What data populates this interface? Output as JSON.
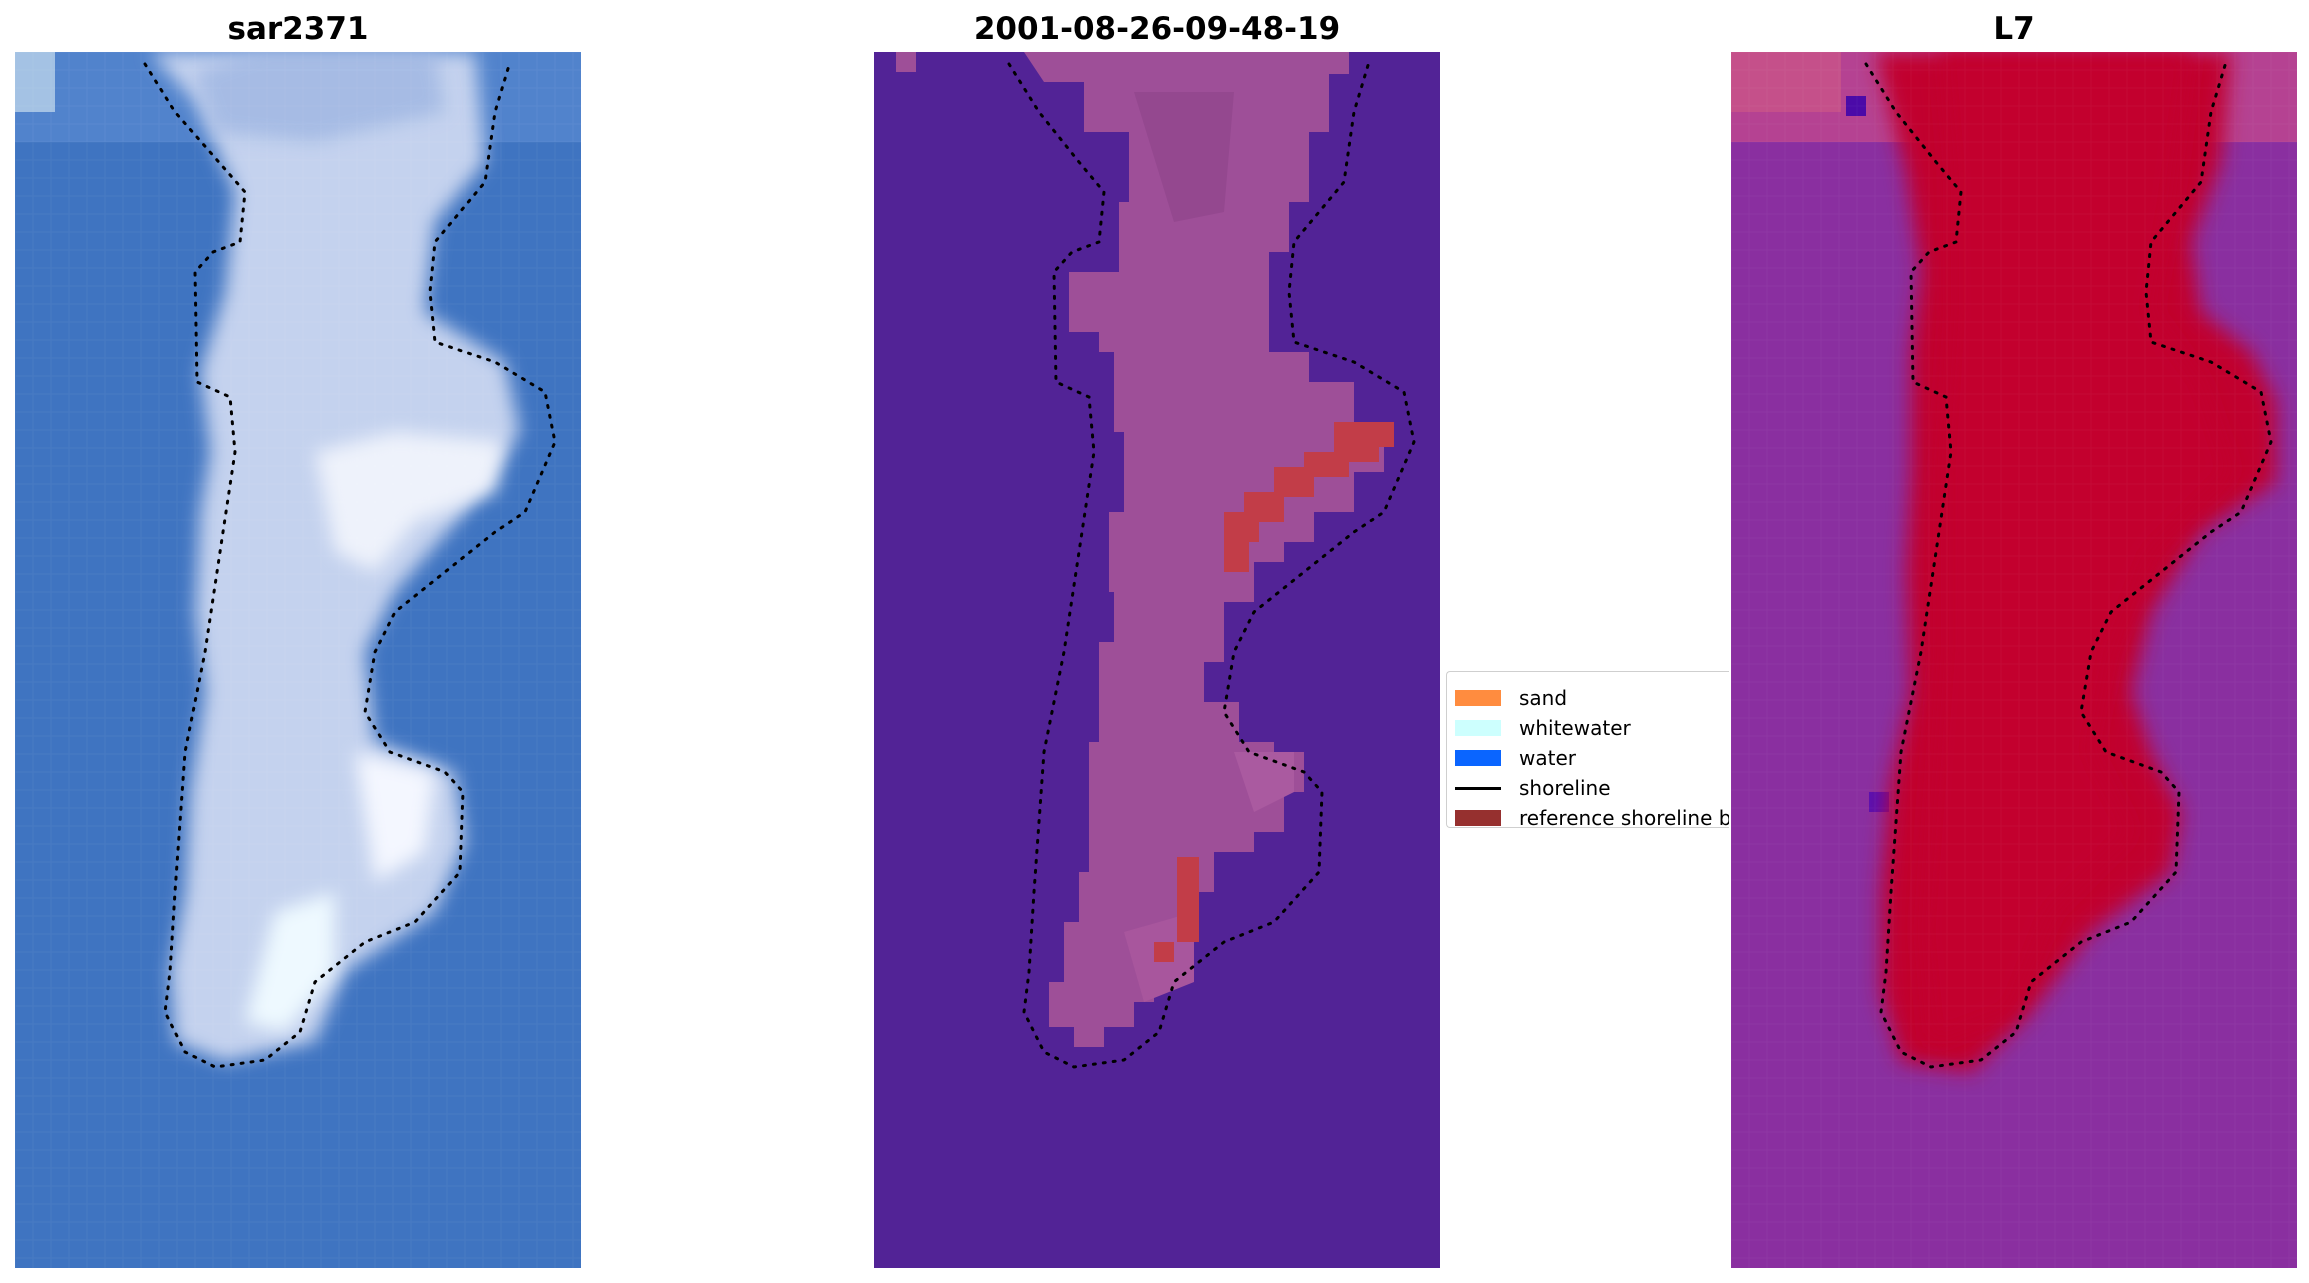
{
  "panels": [
    {
      "title": "sar2371"
    },
    {
      "title": "2001-08-26-09-48-19"
    },
    {
      "title": "L7"
    }
  ],
  "legend": {
    "items": [
      {
        "label": "sand",
        "color": "#ff8c3f",
        "kind": "patch"
      },
      {
        "label": "whitewater",
        "color": "#cdfffe",
        "kind": "patch"
      },
      {
        "label": "water",
        "color": "#0a65ff",
        "kind": "patch"
      },
      {
        "label": "shoreline",
        "color": "#000000",
        "kind": "line"
      },
      {
        "label": "reference shoreline buffer",
        "color": "#96302f",
        "kind": "patch"
      }
    ]
  },
  "colors": {
    "rgb_water": "#3f74c1",
    "rgb_land": "#c8d4ee",
    "classified_background": "#522396",
    "classified_land": "#9e4f98",
    "classified_buffer": "#c23d48",
    "index_background": "#8a2fa0",
    "index_land": "#c1042f",
    "shoreline": "#000000"
  }
}
